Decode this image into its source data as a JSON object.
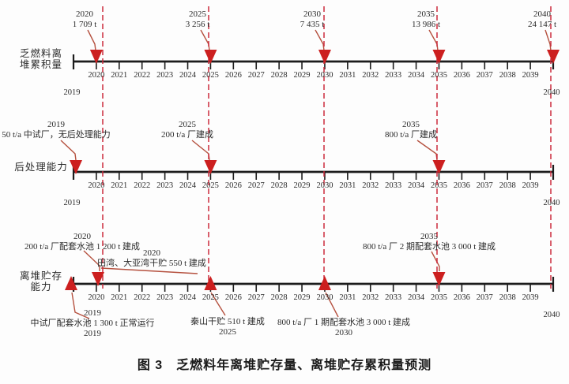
{
  "figure_caption": "图 3　乏燃料年离堆贮存量、离堆贮存累积量预测",
  "colors": {
    "axis": "#1c1c1c",
    "arrow_red": "#cc1f1f",
    "dashed_red": "#cc2b3d",
    "leader_brown": "#b5513f",
    "text": "#2b2b2b"
  },
  "axis_years": {
    "start": "2019",
    "end": "2040",
    "ticks": [
      "2020",
      "2021",
      "2022",
      "2023",
      "2024",
      "2025",
      "2026",
      "2027",
      "2028",
      "2029",
      "2030",
      "2031",
      "2032",
      "2033",
      "2034",
      "2035",
      "2036",
      "2037",
      "2038",
      "2039"
    ]
  },
  "milestone_years": [
    "2020",
    "2025",
    "2030",
    "2035",
    "2040"
  ],
  "timelines": [
    {
      "name": "乏燃料离堆累积量",
      "label_lines": [
        "乏燃料离",
        "堆累积量"
      ],
      "start_year_label": "2019",
      "end_year_label": "2040",
      "arrows": [
        {
          "year": "2020",
          "dir": "down"
        },
        {
          "year": "2025",
          "dir": "down"
        },
        {
          "year": "2030",
          "dir": "down"
        },
        {
          "year": "2035",
          "dir": "down"
        },
        {
          "year": "2040",
          "dir": "down"
        }
      ],
      "annotations": [
        {
          "id": "acc-2020",
          "lines": [
            "2020",
            "1 709 t"
          ]
        },
        {
          "id": "acc-2025",
          "lines": [
            "2025",
            "3 256 t"
          ]
        },
        {
          "id": "acc-2030",
          "lines": [
            "2030",
            "7 435 t"
          ]
        },
        {
          "id": "acc-2035",
          "lines": [
            "2035",
            "13 986 t"
          ]
        },
        {
          "id": "acc-2040",
          "lines": [
            "2040",
            "24 147 t"
          ]
        }
      ]
    },
    {
      "name": "后处理能力",
      "label_lines": [
        "后处理能力"
      ],
      "start_year_label": "2019",
      "end_year_label": "2040",
      "arrows": [
        {
          "year": "2019",
          "dir": "down"
        },
        {
          "year": "2025",
          "dir": "down"
        },
        {
          "year": "2035",
          "dir": "down"
        }
      ],
      "annotations": [
        {
          "id": "rep-2019",
          "lines": [
            "2019",
            "50 t/a 中试厂，无后处理能力"
          ]
        },
        {
          "id": "rep-2025",
          "lines": [
            "2025",
            "200 t/a 厂建成"
          ]
        },
        {
          "id": "rep-2035",
          "lines": [
            "2035",
            "800 t/a 厂建成"
          ]
        }
      ]
    },
    {
      "name": "离堆贮存能力",
      "label_lines": [
        "离堆贮存",
        "能力"
      ],
      "end_year_label": "2040",
      "arrows": [
        {
          "year": "2019",
          "dir": "up"
        },
        {
          "year": "2020",
          "dir": "down"
        },
        {
          "year": "2025",
          "dir": "up"
        },
        {
          "year": "2030",
          "dir": "up"
        },
        {
          "year": "2035",
          "dir": "down"
        }
      ],
      "annotations": [
        {
          "id": "sto-2020-pool",
          "lines": [
            "2020",
            "200 t/a 厂配套水池 1 200 t 建成"
          ]
        },
        {
          "id": "sto-2020-dry",
          "lines": [
            "2020",
            "田湾、大亚湾干贮 550 t 建成"
          ]
        },
        {
          "id": "sto-2035",
          "lines": [
            "2035",
            "800 t/a 厂 2 期配套水池 3 000 t 建成"
          ]
        },
        {
          "id": "sto-2019",
          "lines": [
            "2019",
            "中试厂配套水池 1 300 t 正常运行",
            "2019"
          ]
        },
        {
          "id": "sto-2025",
          "lines": [
            "秦山干贮 510 t 建成",
            "2025"
          ]
        },
        {
          "id": "sto-2030",
          "lines": [
            "800 t/a 厂 1 期配套水池 3 000 t 建成",
            "2030"
          ]
        }
      ]
    }
  ]
}
